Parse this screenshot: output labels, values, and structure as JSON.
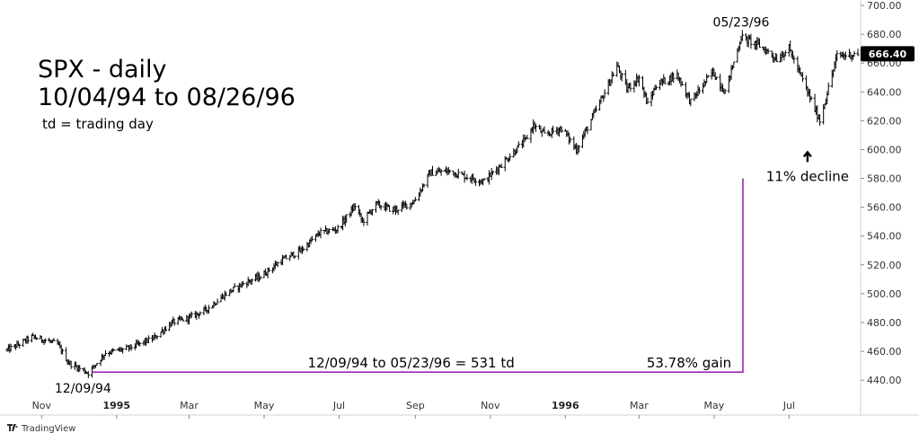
{
  "chart_data": {
    "type": "ohlc",
    "title": "SPX - daily",
    "subtitle": "10/04/94 to 08/26/96",
    "note": "td = trading day",
    "ylim": [
      432,
      700
    ],
    "y_ticks": [
      "440.00",
      "460.00",
      "480.00",
      "500.00",
      "520.00",
      "540.00",
      "560.00",
      "580.00",
      "600.00",
      "620.00",
      "640.00",
      "660.00",
      "680.00",
      "700.00"
    ],
    "x_ticks": [
      {
        "label": "Nov",
        "date": "1994-11-01",
        "bold": false
      },
      {
        "label": "1995",
        "date": "1995-01-01",
        "bold": true
      },
      {
        "label": "Mar",
        "date": "1995-03-01",
        "bold": false
      },
      {
        "label": "May",
        "date": "1995-05-01",
        "bold": false
      },
      {
        "label": "Jul",
        "date": "1995-07-01",
        "bold": false
      },
      {
        "label": "Sep",
        "date": "1995-09-01",
        "bold": false
      },
      {
        "label": "Nov",
        "date": "1995-11-01",
        "bold": false
      },
      {
        "label": "1996",
        "date": "1996-01-01",
        "bold": true
      },
      {
        "label": "Mar",
        "date": "1996-03-01",
        "bold": false
      },
      {
        "label": "May",
        "date": "1996-05-01",
        "bold": false
      },
      {
        "label": "Jul",
        "date": "1996-07-01",
        "bold": false
      }
    ],
    "x_range": [
      "1994-10-04",
      "1996-08-26"
    ],
    "series": [
      {
        "x": [
          "1994-10-04",
          "1994-10-14",
          "1994-10-24",
          "1994-11-03",
          "1994-11-14",
          "1994-11-23",
          "1994-12-09",
          "1994-12-23",
          "1995-01-10",
          "1995-01-31",
          "1995-02-15",
          "1995-02-28",
          "1995-03-15",
          "1995-03-31",
          "1995-04-14",
          "1995-04-28",
          "1995-05-15",
          "1995-05-31",
          "1995-06-15",
          "1995-06-30",
          "1995-07-14",
          "1995-07-20",
          "1995-07-31",
          "1995-08-15",
          "1995-08-31",
          "1995-09-13",
          "1995-09-29",
          "1995-10-13",
          "1995-10-27",
          "1995-11-15",
          "1995-11-30",
          "1995-12-06",
          "1995-12-15",
          "1995-12-29",
          "1996-01-10",
          "1996-01-31",
          "1996-02-12",
          "1996-02-20",
          "1996-03-01",
          "1996-03-08",
          "1996-03-15",
          "1996-04-01",
          "1996-04-12",
          "1996-04-30",
          "1996-05-10",
          "1996-05-23",
          "1996-06-07",
          "1996-06-21",
          "1996-07-01",
          "1996-07-16",
          "1996-07-26",
          "1996-08-09",
          "1996-08-26"
        ],
        "y": [
          461,
          465,
          470,
          468,
          465,
          452,
          445,
          459,
          462,
          469,
          480,
          483,
          489,
          500,
          507,
          512,
          523,
          530,
          542,
          545,
          561,
          550,
          562,
          558,
          564,
          584,
          585,
          581,
          578,
          594,
          607,
          617,
          610,
          615,
          600,
          636,
          658,
          642,
          650,
          631,
          645,
          652,
          633,
          654,
          640,
          678,
          672,
          663,
          670,
          640,
          620,
          665,
          666.4
        ]
      }
    ],
    "last_price": "666.40",
    "annotations": {
      "peak_label": "05/23/96",
      "peak": {
        "date": "1996-05-23",
        "value": 678
      },
      "low_label": "12/09/94",
      "low": {
        "date": "1994-12-09",
        "value": 445
      },
      "decline_label": "11% decline",
      "decline_date": "1996-07-16",
      "decline_value": 605,
      "span_label": "12/09/94 to 05/23/96 = 531 td",
      "gain_label": "53.78% gain",
      "bracket_color": "#9c27b0"
    },
    "grid": false,
    "colors": {
      "bars": "#000000",
      "price_box": "#000000"
    },
    "branding": "TradingView"
  }
}
